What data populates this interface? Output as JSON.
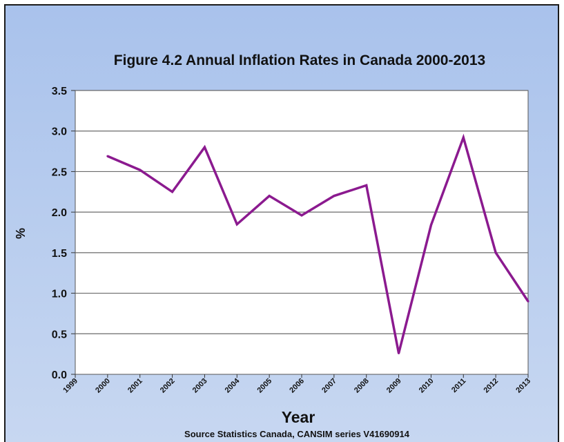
{
  "chart_data": {
    "type": "line",
    "title": "Figure 4.2 Annual Inflation Rates in Canada 2000-2013",
    "xlabel": "Year",
    "ylabel": "%",
    "source": "Source Statistics Canada, CANSIM series V41690914",
    "categories": [
      "1999",
      "2000",
      "2001",
      "2002",
      "2003",
      "2004",
      "2005",
      "2006",
      "2007",
      "2008",
      "2009",
      "2010",
      "2011",
      "2012",
      "2013"
    ],
    "yticks": [
      "0.0",
      "0.5",
      "1.0",
      "1.5",
      "2.0",
      "2.5",
      "3.0",
      "3.5"
    ],
    "ylim": [
      0,
      3.5
    ],
    "grid": true,
    "series": [
      {
        "x": [
          "2000",
          "2001",
          "2002",
          "2003",
          "2004",
          "2005",
          "2006",
          "2007",
          "2008",
          "2009",
          "2010",
          "2011",
          "2012",
          "2013"
        ],
        "values": [
          2.69,
          2.52,
          2.25,
          2.8,
          1.85,
          2.2,
          1.96,
          2.2,
          2.33,
          0.26,
          1.84,
          2.92,
          1.5,
          0.9
        ],
        "color": "#8b1a8f"
      }
    ]
  }
}
